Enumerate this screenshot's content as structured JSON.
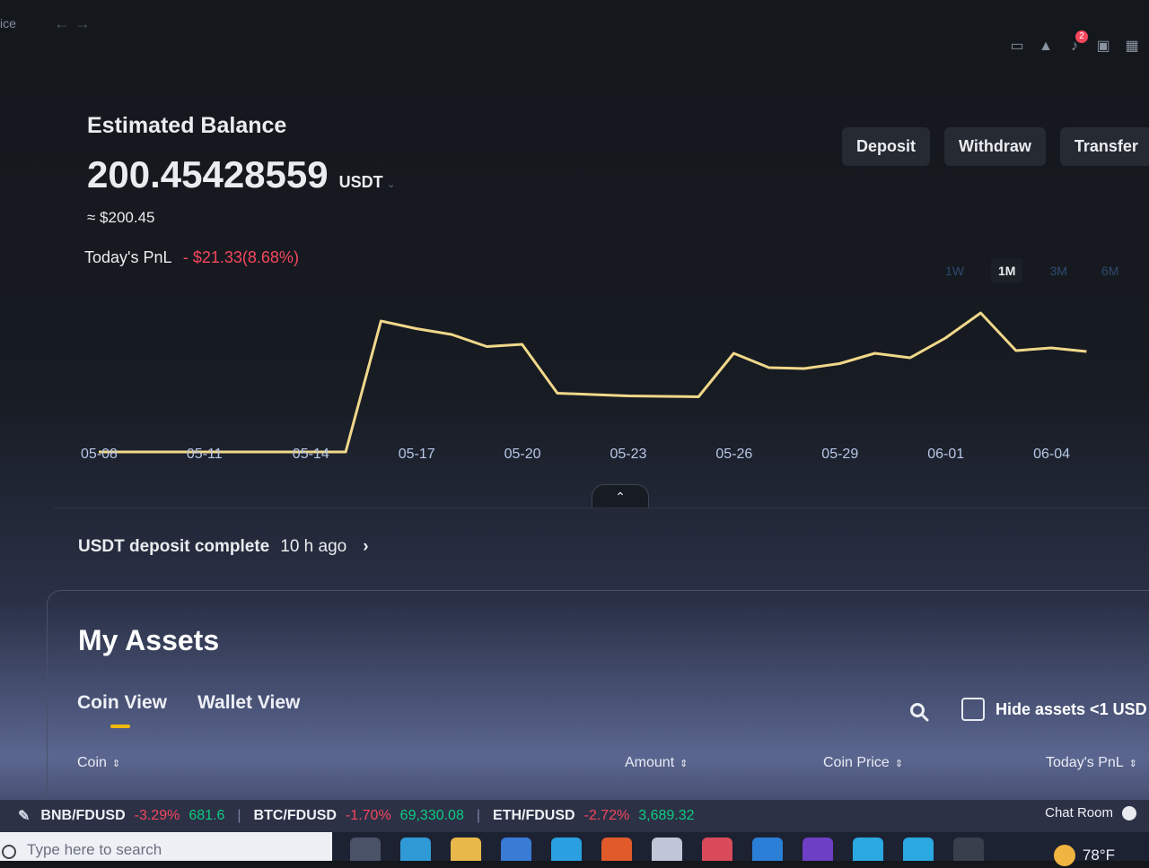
{
  "topbar": {
    "nav_text": "ice",
    "notification_count": "2"
  },
  "balance": {
    "title": "Estimated Balance",
    "value": "200.45428559",
    "unit": "USDT",
    "approx": "≈ $200.45",
    "pnl_label": "Today's PnL",
    "pnl_value": "- $21.33(8.68%)"
  },
  "actions": {
    "deposit": "Deposit",
    "withdraw": "Withdraw",
    "transfer": "Transfer"
  },
  "ranges": [
    "1W",
    "1M",
    "3M",
    "6M"
  ],
  "active_range": "1M",
  "chart_data": {
    "type": "line",
    "x_ticks": [
      "05-08",
      "05-11",
      "05-14",
      "05-17",
      "05-20",
      "05-23",
      "05-26",
      "05-29",
      "06-01",
      "06-04"
    ],
    "x": [
      "05-08",
      "05-15",
      "05-16",
      "05-17",
      "05-18",
      "05-19",
      "05-20",
      "05-21",
      "05-22",
      "05-23",
      "05-24",
      "05-25",
      "05-26",
      "05-27",
      "05-28",
      "05-29",
      "05-30",
      "05-31",
      "06-01",
      "06-02",
      "06-03",
      "06-04",
      "06-05"
    ],
    "values": [
      96.0,
      96.0,
      242.0,
      233.5,
      227.0,
      213.5,
      216.0,
      161.5,
      160.0,
      158.5,
      158.0,
      157.5,
      206.0,
      190.0,
      189.0,
      194.5,
      206.0,
      201.0,
      223.0,
      251.0,
      209.0,
      212.0,
      208.0
    ],
    "ylim": [
      60,
      300
    ],
    "color": "#f0d88a"
  },
  "notice": {
    "text": "USDT deposit complete",
    "time": "10 h ago",
    "arrow": "›"
  },
  "assets": {
    "title": "My Assets",
    "tabs": [
      "Coin View",
      "Wallet View"
    ],
    "hide_label": "Hide assets <1 USD",
    "columns": [
      "Coin",
      "Amount",
      "Coin Price",
      "Today's PnL"
    ]
  },
  "ticker": [
    {
      "pair": "BNB/FDUSD",
      "change": "-3.29%",
      "price": "681.6"
    },
    {
      "pair": "BTC/FDUSD",
      "change": "-1.70%",
      "price": "69,330.08"
    },
    {
      "pair": "ETH/FDUSD",
      "change": "-2.72%",
      "price": "3,689.32"
    }
  ],
  "chat_room": "Chat Room",
  "taskbar": {
    "search_placeholder": "Type here to search",
    "weather": "78°F"
  },
  "colors": {
    "positive": "#0ecb81",
    "negative": "#f6465d",
    "accent": "#f0b90b"
  }
}
